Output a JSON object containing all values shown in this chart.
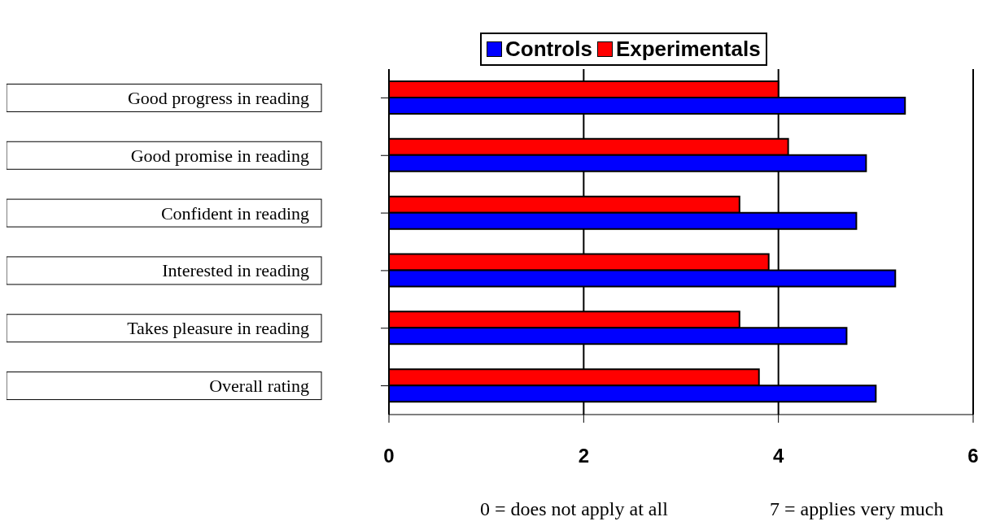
{
  "chart_data": {
    "type": "bar",
    "orientation": "horizontal",
    "categories": [
      "Good progress in reading",
      "Good promise in reading",
      "Confident in reading",
      "Interested in reading",
      "Takes pleasure in reading",
      "Overall rating"
    ],
    "series": [
      {
        "name": "Controls",
        "color": "#0000ff",
        "values": [
          5.3,
          4.9,
          4.8,
          5.2,
          4.7,
          5.0
        ]
      },
      {
        "name": "Experimentals",
        "color": "#ff0000",
        "values": [
          4.0,
          4.1,
          3.6,
          3.9,
          3.6,
          3.8
        ]
      }
    ],
    "xlim": [
      0,
      6
    ],
    "xticks": [
      0,
      2,
      4,
      6
    ],
    "grid": "x",
    "legend": "top",
    "annotations": [
      "0 = does not apply at all",
      "7 = applies very much"
    ]
  }
}
